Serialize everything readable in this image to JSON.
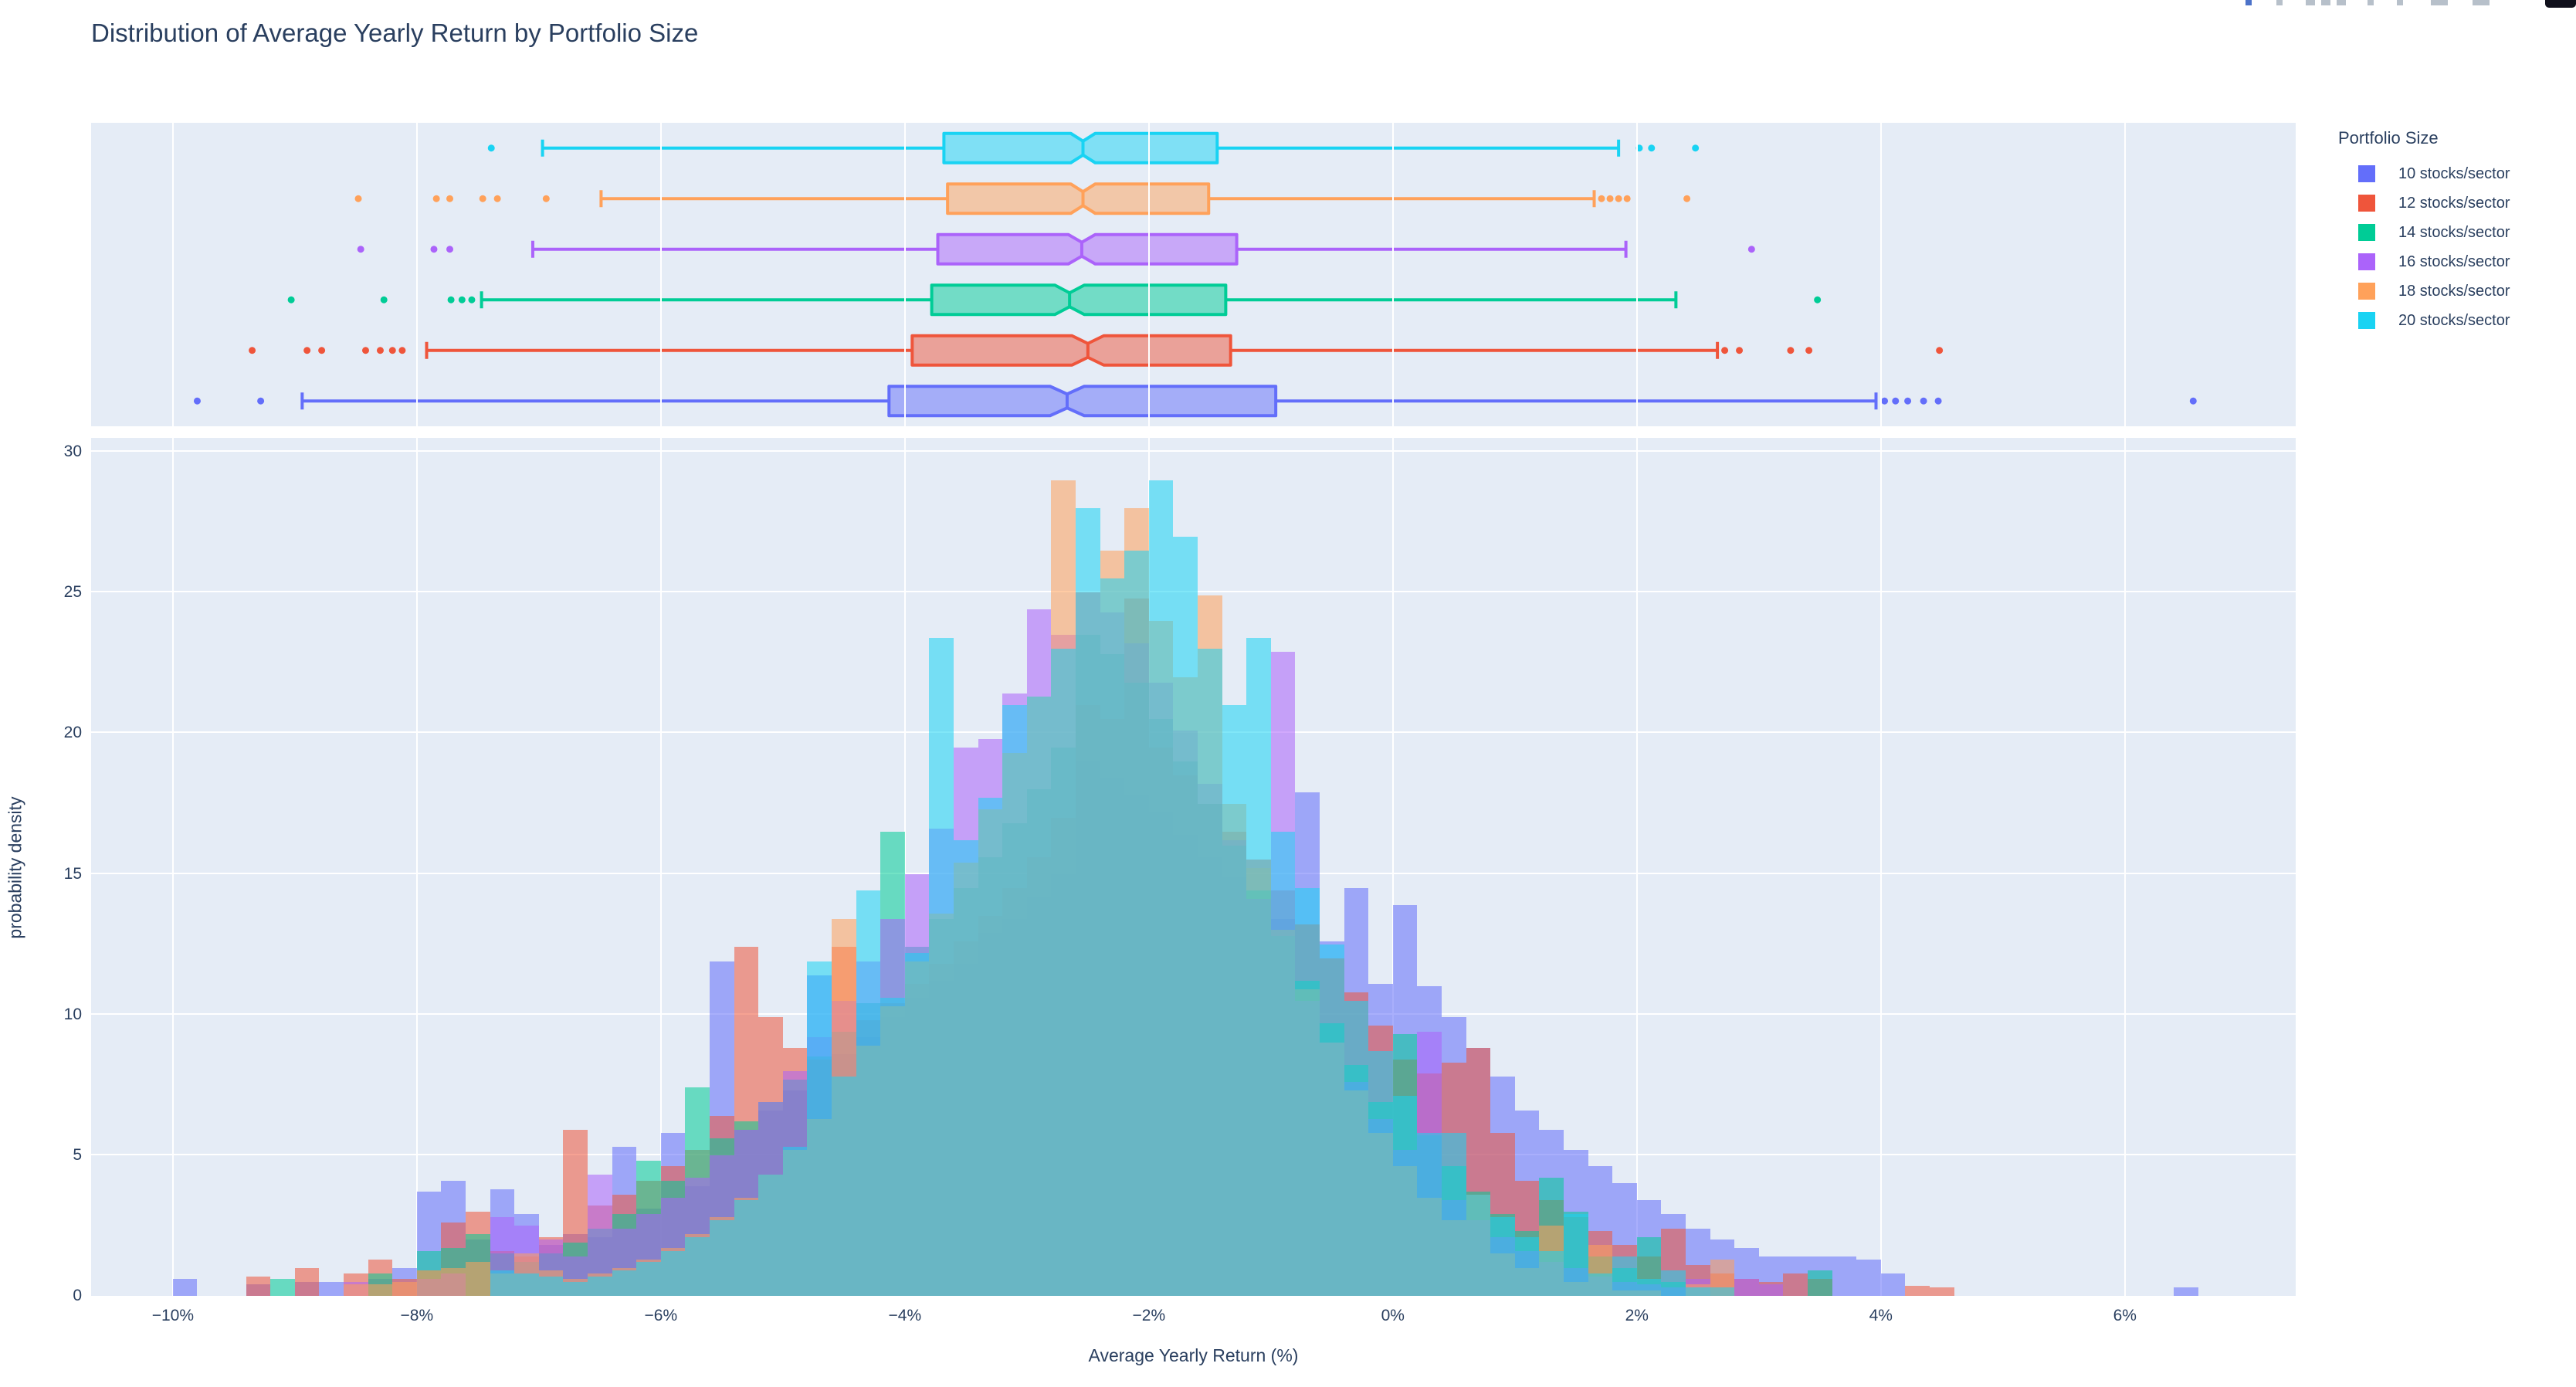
{
  "chart_data": {
    "type": "histogram+box-marginal-overlay",
    "title": "Distribution of Average Yearly Return by Portfolio Size",
    "xlabel": "Average Yearly Return (%)",
    "ylabel": "probability density",
    "x_range_pct": [
      -10.67,
      7.4
    ],
    "y_range_density": [
      0,
      30.5
    ],
    "x_ticks": {
      "values": [
        -10,
        -8,
        -6,
        -4,
        -2,
        0,
        2,
        4,
        6
      ],
      "labels": [
        "−10%",
        "−8%",
        "−6%",
        "−4%",
        "−2%",
        "0%",
        "2%",
        "4%",
        "6%"
      ]
    },
    "y_ticks": {
      "values": [
        0,
        5,
        10,
        15,
        20,
        25,
        30
      ],
      "labels": [
        "0",
        "5",
        "10",
        "15",
        "20",
        "25",
        "30"
      ]
    },
    "grid": true,
    "legend_position": "right",
    "histogram_bin_width_pct": 0.2,
    "bar_opacity": 0.55,
    "series": [
      {
        "name": "10 stocks/sector",
        "color": "#636EFA",
        "box": {
          "whisker_low": -8.94,
          "q1": -4.13,
          "median": -2.67,
          "q3": -0.96,
          "whisker_high": 3.96,
          "notch_halfwidth": 0.14,
          "outliers": [
            -9.8,
            -9.28,
            4.03,
            4.12,
            4.22,
            4.35,
            4.47,
            6.56
          ]
        },
        "hist": {
          "x0": -10.0,
          "values": [
            0.6,
            0,
            0,
            0.4,
            0,
            0.5,
            0.5,
            0,
            0.6,
            1.0,
            3.7,
            4.1,
            2.0,
            3.8,
            2.9,
            1.8,
            2.2,
            2.1,
            5.3,
            3.1,
            5.8,
            3.9,
            11.9,
            5.9,
            6.6,
            7.3,
            11.4,
            8.6,
            9.2,
            9.9,
            10.6,
            11.2,
            11.8,
            12.9,
            13.4,
            14.2,
            15.0,
            19.0,
            18.4,
            17.8,
            17.2,
            16.4,
            15.6,
            14.9,
            14.1,
            13.4,
            17.9,
            12.6,
            14.5,
            11.1,
            13.9,
            11.0,
            9.9,
            8.8,
            7.8,
            6.6,
            5.9,
            5.2,
            4.6,
            4.0,
            3.4,
            2.9,
            2.4,
            2.0,
            1.7,
            1.4,
            1.4,
            1.4,
            1.4,
            1.3,
            0.8,
            0,
            0,
            0,
            0,
            0,
            0,
            0,
            0,
            0,
            0,
            0,
            0.3
          ]
        }
      },
      {
        "name": "12 stocks/sector",
        "color": "#EF553B",
        "box": {
          "whisker_low": -7.92,
          "q1": -3.94,
          "median": -2.5,
          "q3": -1.33,
          "whisker_high": 2.66,
          "notch_halfwidth": 0.13,
          "outliers": [
            -9.35,
            -8.9,
            -8.78,
            -8.42,
            -8.3,
            -8.2,
            -8.12,
            2.72,
            2.84,
            3.26,
            3.41,
            4.48
          ]
        },
        "hist": {
          "x0": -9.4,
          "values": [
            0.7,
            0,
            1.0,
            0,
            0.8,
            1.3,
            0.6,
            0.9,
            2.6,
            3.0,
            1.6,
            1.4,
            2.1,
            5.9,
            3.2,
            3.6,
            4.1,
            4.6,
            5.2,
            6.4,
            12.4,
            9.9,
            8.8,
            8.4,
            12.4,
            9.8,
            10.4,
            11.1,
            11.8,
            12.6,
            13.5,
            14.5,
            15.6,
            17.0,
            21.0,
            20.5,
            24.8,
            19.5,
            18.5,
            17.5,
            16.5,
            15.5,
            14.4,
            13.2,
            12.0,
            10.8,
            9.6,
            8.4,
            7.9,
            8.3,
            8.8,
            5.8,
            4.1,
            3.4,
            2.8,
            2.3,
            1.8,
            1.4,
            2.4,
            1.1,
            0.8,
            0.6,
            0.5,
            0.8,
            0.6,
            0,
            0,
            0,
            0.35,
            0.3
          ]
        }
      },
      {
        "name": "14 stocks/sector",
        "color": "#00CC96",
        "box": {
          "whisker_low": -7.47,
          "q1": -3.78,
          "median": -2.65,
          "q3": -1.37,
          "whisker_high": 2.32,
          "notch_halfwidth": 0.12,
          "outliers": [
            -9.03,
            -8.27,
            -7.72,
            -7.63,
            -7.55,
            3.48
          ]
        },
        "hist": {
          "x0": -9.2,
          "values": [
            0.6,
            0,
            0,
            0,
            0.8,
            0,
            1.6,
            1.7,
            2.2,
            1.5,
            1.2,
            1.5,
            1.9,
            2.4,
            2.9,
            4.8,
            4.1,
            7.4,
            5.6,
            6.2,
            6.9,
            7.7,
            8.5,
            9.4,
            10.4,
            16.5,
            12.4,
            13.4,
            14.5,
            15.6,
            16.8,
            18.0,
            19.5,
            23.5,
            22.8,
            21.8,
            20.5,
            19.0,
            17.5,
            16.0,
            14.4,
            12.8,
            11.2,
            9.7,
            8.2,
            6.9,
            9.3,
            5.7,
            4.6,
            3.7,
            2.9,
            2.3,
            4.2,
            3.0,
            1.4,
            1.0,
            2.1,
            0.5,
            0.3,
            0,
            0,
            0,
            0,
            0.9
          ]
        }
      },
      {
        "name": "16 stocks/sector",
        "color": "#AB63FA",
        "box": {
          "whisker_low": -7.05,
          "q1": -3.73,
          "median": -2.55,
          "q3": -1.28,
          "whisker_high": 1.91,
          "notch_halfwidth": 0.11,
          "outliers": [
            -8.46,
            -7.86,
            -7.73,
            2.94
          ]
        },
        "hist": {
          "x0": -8.6,
          "values": [
            0.5,
            0,
            0,
            0.6,
            0.8,
            0,
            2.8,
            2.5,
            2.0,
            1.4,
            4.3,
            2.4,
            2.9,
            3.5,
            4.2,
            5.0,
            5.9,
            6.9,
            8.0,
            9.2,
            10.5,
            11.9,
            13.4,
            15.0,
            16.6,
            19.5,
            19.8,
            21.4,
            24.4,
            23.5,
            25.0,
            24.3,
            23.2,
            21.8,
            20.1,
            18.2,
            16.2,
            14.1,
            22.9,
            10.5,
            9.0,
            7.6,
            6.3,
            5.2,
            9.4,
            3.4,
            2.7,
            2.1,
            1.6,
            1.2,
            1.0,
            0.7,
            0.5,
            0.4,
            0.3,
            0.6,
            0,
            0.6,
            0.4
          ]
        }
      },
      {
        "name": "18 stocks/sector",
        "color": "#FFA15A",
        "box": {
          "whisker_low": -6.49,
          "q1": -3.65,
          "median": -2.54,
          "q3": -1.51,
          "whisker_high": 1.65,
          "notch_halfwidth": 0.1,
          "outliers": [
            -8.48,
            -7.84,
            -7.73,
            -7.46,
            -7.34,
            -6.94,
            1.71,
            1.78,
            1.85,
            1.92,
            2.41
          ]
        },
        "hist": {
          "x0": -8.6,
          "values": [
            0.4,
            0.4,
            0.5,
            0.9,
            1.0,
            1.2,
            0.8,
            1.5,
            0.9,
            0.6,
            0.8,
            1.0,
            1.3,
            1.7,
            2.2,
            2.8,
            3.5,
            4.3,
            5.2,
            6.3,
            13.4,
            8.9,
            10.3,
            11.9,
            13.6,
            15.4,
            17.3,
            19.3,
            21.3,
            29.0,
            25.0,
            26.5,
            28.0,
            24.0,
            22.0,
            24.9,
            17.5,
            15.2,
            13.0,
            10.9,
            9.0,
            7.3,
            5.8,
            4.6,
            3.5,
            2.7,
            3.6,
            1.5,
            1.0,
            2.5,
            0.5,
            1.8,
            0.2,
            0.2,
            0,
            0.4,
            1.3
          ]
        }
      },
      {
        "name": "20 stocks/sector",
        "color": "#19D3F3",
        "box": {
          "whisker_low": -6.97,
          "q1": -3.68,
          "median": -2.54,
          "q3": -1.44,
          "whisker_high": 1.85,
          "notch_halfwidth": 0.1,
          "outliers": [
            -7.39,
            2.02,
            2.12,
            2.48
          ]
        },
        "hist": {
          "x0": -7.4,
          "values": [
            0.9,
            0.8,
            0.7,
            0.5,
            0.7,
            0.9,
            1.2,
            1.6,
            2.1,
            2.7,
            3.4,
            4.3,
            5.3,
            11.9,
            7.8,
            14.4,
            10.6,
            12.2,
            23.4,
            16.2,
            17.7,
            21.0,
            21.3,
            23.0,
            28.0,
            25.5,
            26.5,
            29.0,
            27.0,
            23.0,
            21.0,
            23.4,
            16.5,
            14.5,
            12.5,
            10.5,
            8.7,
            7.1,
            5.8,
            5.8,
            3.6,
            2.8,
            2.1,
            1.6,
            2.9,
            0.8,
            1.4,
            0.6,
            0.9,
            0.3,
            0.3
          ]
        }
      }
    ],
    "box_panel_row_order_top_to_bottom": [
      "20 stocks/sector",
      "18 stocks/sector",
      "16 stocks/sector",
      "14 stocks/sector",
      "12 stocks/sector",
      "10 stocks/sector"
    ]
  },
  "legend": {
    "title": "Portfolio Size"
  },
  "colors": {
    "plot_background": "#E5ECF6",
    "paper_background": "#FFFFFF",
    "gridline": "#FFFFFF",
    "text": "#2a3f5f",
    "modebar_icon": "#b7c0ca",
    "modebar_active": "#4c72c9",
    "modebar_logo": "#10101c"
  }
}
